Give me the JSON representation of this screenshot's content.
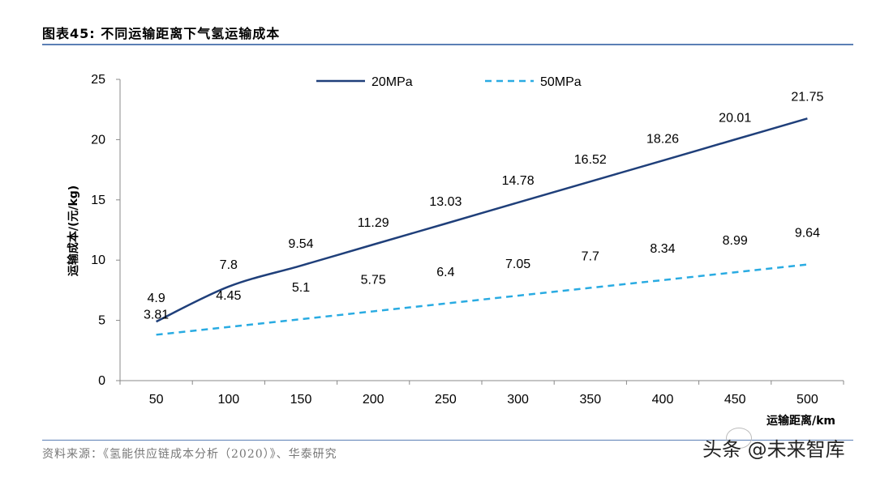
{
  "header": {
    "title": "图表45:   不同运输距离下气氢运输成本"
  },
  "footer": {
    "source": "资料来源：《氢能供应链成本分析（2020）》、华泰研究",
    "watermark": "头条 @未来智库"
  },
  "chart_data": {
    "type": "line",
    "x": [
      50,
      100,
      150,
      200,
      250,
      300,
      350,
      400,
      450,
      500
    ],
    "series": [
      {
        "name": "20MPa",
        "values": [
          4.9,
          7.8,
          9.54,
          11.29,
          13.03,
          14.78,
          16.52,
          18.26,
          20.01,
          21.75
        ],
        "color": "#1f3f7a",
        "style": "solid"
      },
      {
        "name": "50MPa",
        "values": [
          3.81,
          4.45,
          5.1,
          5.75,
          6.4,
          7.05,
          7.7,
          8.34,
          8.99,
          9.64
        ],
        "color": "#29abe2",
        "style": "dashed"
      }
    ],
    "ylabel": "运输成本/(元/kg)",
    "xlabel": "运输距离/km",
    "ylim": [
      0,
      25
    ],
    "yticks": [
      0,
      5,
      10,
      15,
      20,
      25
    ],
    "grid": false,
    "legend": "top"
  }
}
